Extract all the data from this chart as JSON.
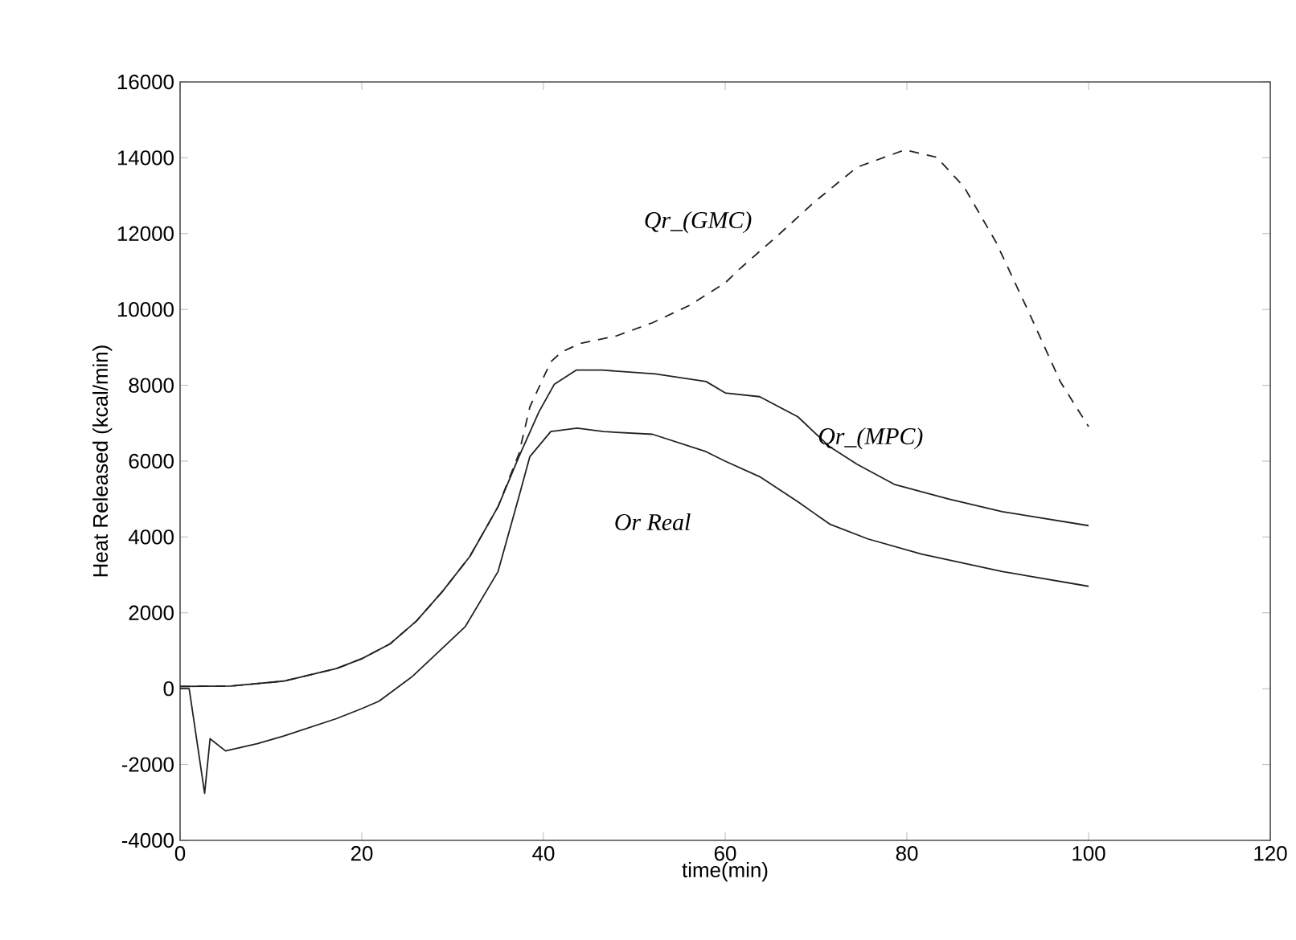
{
  "chart_data": {
    "type": "line",
    "xlabel": "time(min)",
    "ylabel": "Heat Released (kcal/min)",
    "xlim": [
      0,
      120
    ],
    "xticks": [
      0,
      20,
      40,
      60,
      80,
      100,
      120
    ],
    "ylim": [
      -4000,
      16000
    ],
    "yticks": [
      -4000,
      -2000,
      0,
      2000,
      4000,
      6000,
      8000,
      10000,
      12000,
      14000,
      16000
    ],
    "grid": false,
    "legend": false,
    "marker": "none",
    "series": [
      {
        "name": "Qr_(GMC)",
        "color": "#222222",
        "line_style": "dashed",
        "x": [
          0,
          5.6,
          11.4,
          17.2,
          20,
          23.1,
          26,
          28.9,
          31.9,
          35,
          37.3,
          38.5,
          40.8,
          42,
          44,
          48,
          52,
          56,
          60,
          61.5,
          65.6,
          69.8,
          74.5,
          79.8,
          83.3,
          86.3,
          89.8,
          93.4,
          96.9,
          100
        ],
        "values": [
          60,
          70,
          200,
          530,
          790,
          1180,
          1780,
          2570,
          3490,
          4800,
          6200,
          7430,
          8620,
          8880,
          9100,
          9300,
          9650,
          10100,
          10700,
          11050,
          11910,
          12830,
          13750,
          14210,
          14010,
          13230,
          11780,
          9940,
          8090,
          6910
        ]
      },
      {
        "name": "Qr_(MPC)",
        "color": "#222222",
        "line_style": "solid",
        "x": [
          0,
          5.6,
          11.4,
          17.2,
          20,
          23.1,
          26,
          28.9,
          31.9,
          35,
          37.3,
          39.5,
          41.2,
          43.6,
          46.5,
          52.3,
          57.9,
          60,
          63.8,
          68,
          71.5,
          74.5,
          78.6,
          84.6,
          90.5,
          100
        ],
        "values": [
          60,
          70,
          200,
          530,
          790,
          1180,
          1780,
          2570,
          3490,
          4800,
          6120,
          7300,
          8030,
          8400,
          8400,
          8300,
          8100,
          7800,
          7700,
          7170,
          6380,
          5920,
          5390,
          5000,
          4670,
          4300
        ]
      },
      {
        "name": "Or Real",
        "color": "#222222",
        "line_style": "solid",
        "x": [
          0,
          1,
          2.7,
          3.3,
          5,
          8.5,
          11.4,
          17.2,
          20,
          21.9,
          25.6,
          31.4,
          35,
          37.3,
          38.5,
          40.8,
          43.7,
          46.6,
          52,
          57.9,
          60,
          63.8,
          68,
          71.5,
          75.7,
          81.6,
          90.5,
          100
        ],
        "values": [
          0,
          0,
          -2760,
          -1320,
          -1640,
          -1450,
          -1250,
          -790,
          -525,
          -330,
          330,
          1640,
          3090,
          5070,
          6120,
          6780,
          6870,
          6780,
          6710,
          6250,
          6000,
          5590,
          4930,
          4340,
          3950,
          3550,
          3090,
          2700
        ]
      }
    ]
  }
}
